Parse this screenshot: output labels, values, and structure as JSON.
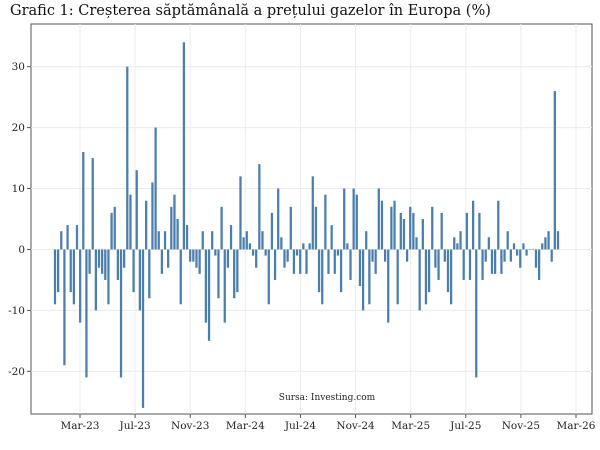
{
  "chart_data": {
    "type": "bar",
    "title": "Grafic 1: Creșterea săptămânală a prețului gazelor în Europa (%)",
    "xlabel": "",
    "ylabel": "",
    "source": "Sursa: Investing.com",
    "color": "#4a7ead",
    "ylim": [
      -27,
      37
    ],
    "y_ticks": [
      -20,
      -10,
      0,
      10,
      20,
      30
    ],
    "x_ticks": [
      "Mar-23",
      "Jul-23",
      "Nov-23",
      "Mar-24",
      "Jul-24",
      "Nov-24",
      "Mar-25",
      "Jul-25",
      "Nov-25",
      "Mar-26"
    ],
    "grid": true,
    "values": [
      -9,
      -7,
      3,
      -19,
      4,
      -7,
      -9,
      4,
      -12,
      16,
      -21,
      -4,
      15,
      -10,
      -3,
      -4,
      -5,
      -9,
      6,
      7,
      -5,
      -21,
      -3,
      30,
      9,
      -7,
      13,
      -10,
      -26,
      8,
      -8,
      11,
      20,
      3,
      -4,
      3,
      -3,
      7,
      9,
      5,
      -9,
      34,
      4,
      -2,
      -2,
      -3,
      -4,
      3,
      -12,
      -15,
      3,
      -1,
      -8,
      7,
      -12,
      -3,
      4,
      -8,
      -7,
      12,
      2,
      3,
      1,
      -1,
      -3,
      14,
      3,
      -1,
      -9,
      6,
      -5,
      10,
      2,
      -3,
      -2,
      7,
      -4,
      -1,
      -4,
      1,
      -4,
      1,
      12,
      7,
      -7,
      -9,
      9,
      -4,
      4,
      -4,
      -1,
      -7,
      10,
      1,
      -5,
      10,
      9,
      -6,
      -10,
      3,
      -9,
      -2,
      -4,
      10,
      8,
      -2,
      -12,
      7,
      8,
      -9,
      6,
      5,
      -2,
      7,
      6,
      2,
      -10,
      5,
      -9,
      -7,
      7,
      -3,
      -5,
      6,
      -2,
      -7,
      -9,
      2,
      1,
      3,
      -5,
      6,
      -5,
      8,
      -21,
      6,
      -5,
      -2,
      2,
      -4,
      -4,
      8,
      -4,
      -2,
      3,
      -2,
      1,
      -1,
      -3,
      1,
      -1,
      0,
      0,
      -3,
      -5,
      1,
      2,
      3,
      -2,
      26,
      3
    ]
  }
}
